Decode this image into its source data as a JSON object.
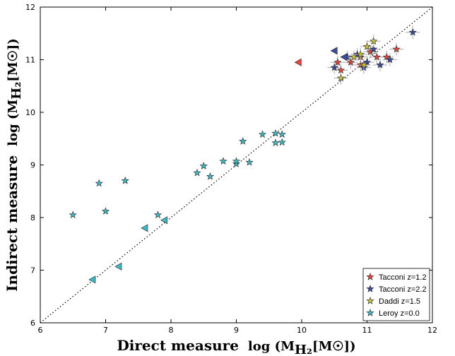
{
  "chart_data": {
    "type": "scatter",
    "title": "",
    "xlabel": "Direct measure",
    "xlabel_math": "log (M",
    "xlabel_sub": "H₂",
    "xlabel_tail": "[M☉])",
    "ylabel": "Indirect measure",
    "ylabel_math": "log (M",
    "ylabel_sub": "H₂",
    "ylabel_tail": "[M☉])",
    "xlim": [
      6,
      12
    ],
    "ylim": [
      6,
      12
    ],
    "xticks": [
      "6",
      "7",
      "8",
      "9",
      "10",
      "11",
      "12"
    ],
    "yticks": [
      "6",
      "7",
      "8",
      "9",
      "10",
      "11",
      "12"
    ],
    "one_to_one_line": true,
    "legend_position": "bottom-right",
    "series": [
      {
        "name": "Tacconi z=1.2",
        "color": "#e8453c",
        "marker": "star",
        "points": [
          [
            10.6,
            10.8
          ],
          [
            10.55,
            10.95
          ],
          [
            10.75,
            10.95
          ],
          [
            10.9,
            11.05
          ],
          [
            11.05,
            11.15
          ],
          [
            11.15,
            11.05
          ],
          [
            11.3,
            11.05
          ],
          [
            11.45,
            11.2
          ],
          [
            10.9,
            10.9
          ]
        ]
      },
      {
        "name": "Tacconi z=2.2",
        "color": "#3d4b9c",
        "marker": "star",
        "points": [
          [
            10.5,
            10.85
          ],
          [
            10.7,
            11.05
          ],
          [
            10.85,
            11.1
          ],
          [
            11.0,
            10.95
          ],
          [
            11.1,
            11.2
          ],
          [
            11.2,
            10.9
          ],
          [
            11.35,
            11.0
          ],
          [
            11.7,
            11.52
          ],
          [
            10.95,
            10.85
          ]
        ]
      },
      {
        "name": "Daddi z=1.5",
        "color": "#c9c33c",
        "marker": "star",
        "points": [
          [
            10.6,
            10.65
          ],
          [
            10.8,
            11.05
          ],
          [
            10.9,
            11.1
          ],
          [
            11.0,
            11.25
          ],
          [
            11.1,
            11.35
          ],
          [
            10.95,
            10.9
          ]
        ]
      },
      {
        "name": "Leroy z=0.0",
        "color": "#40b8c4",
        "marker": "star",
        "points": [
          [
            6.5,
            8.05
          ],
          [
            6.9,
            8.65
          ],
          [
            7.0,
            8.12
          ],
          [
            7.3,
            8.7
          ],
          [
            7.8,
            8.05
          ],
          [
            8.4,
            8.85
          ],
          [
            8.5,
            8.98
          ],
          [
            8.6,
            8.78
          ],
          [
            8.8,
            9.07
          ],
          [
            9.0,
            9.02
          ],
          [
            9.0,
            9.07
          ],
          [
            9.1,
            9.45
          ],
          [
            9.2,
            9.05
          ],
          [
            9.4,
            9.58
          ],
          [
            9.6,
            9.6
          ],
          [
            9.6,
            9.42
          ],
          [
            9.7,
            9.58
          ],
          [
            9.7,
            9.43
          ]
        ]
      }
    ],
    "upper_limits": [
      {
        "color": "#e8453c",
        "points": [
          [
            9.95,
            10.95
          ]
        ]
      },
      {
        "color": "#3d4b9c",
        "points": [
          [
            10.5,
            11.17
          ],
          [
            10.65,
            11.05
          ]
        ]
      },
      {
        "color": "#40b8c4",
        "points": [
          [
            6.8,
            6.82
          ],
          [
            7.2,
            7.07
          ],
          [
            7.6,
            7.8
          ],
          [
            7.9,
            7.95
          ]
        ]
      }
    ]
  }
}
